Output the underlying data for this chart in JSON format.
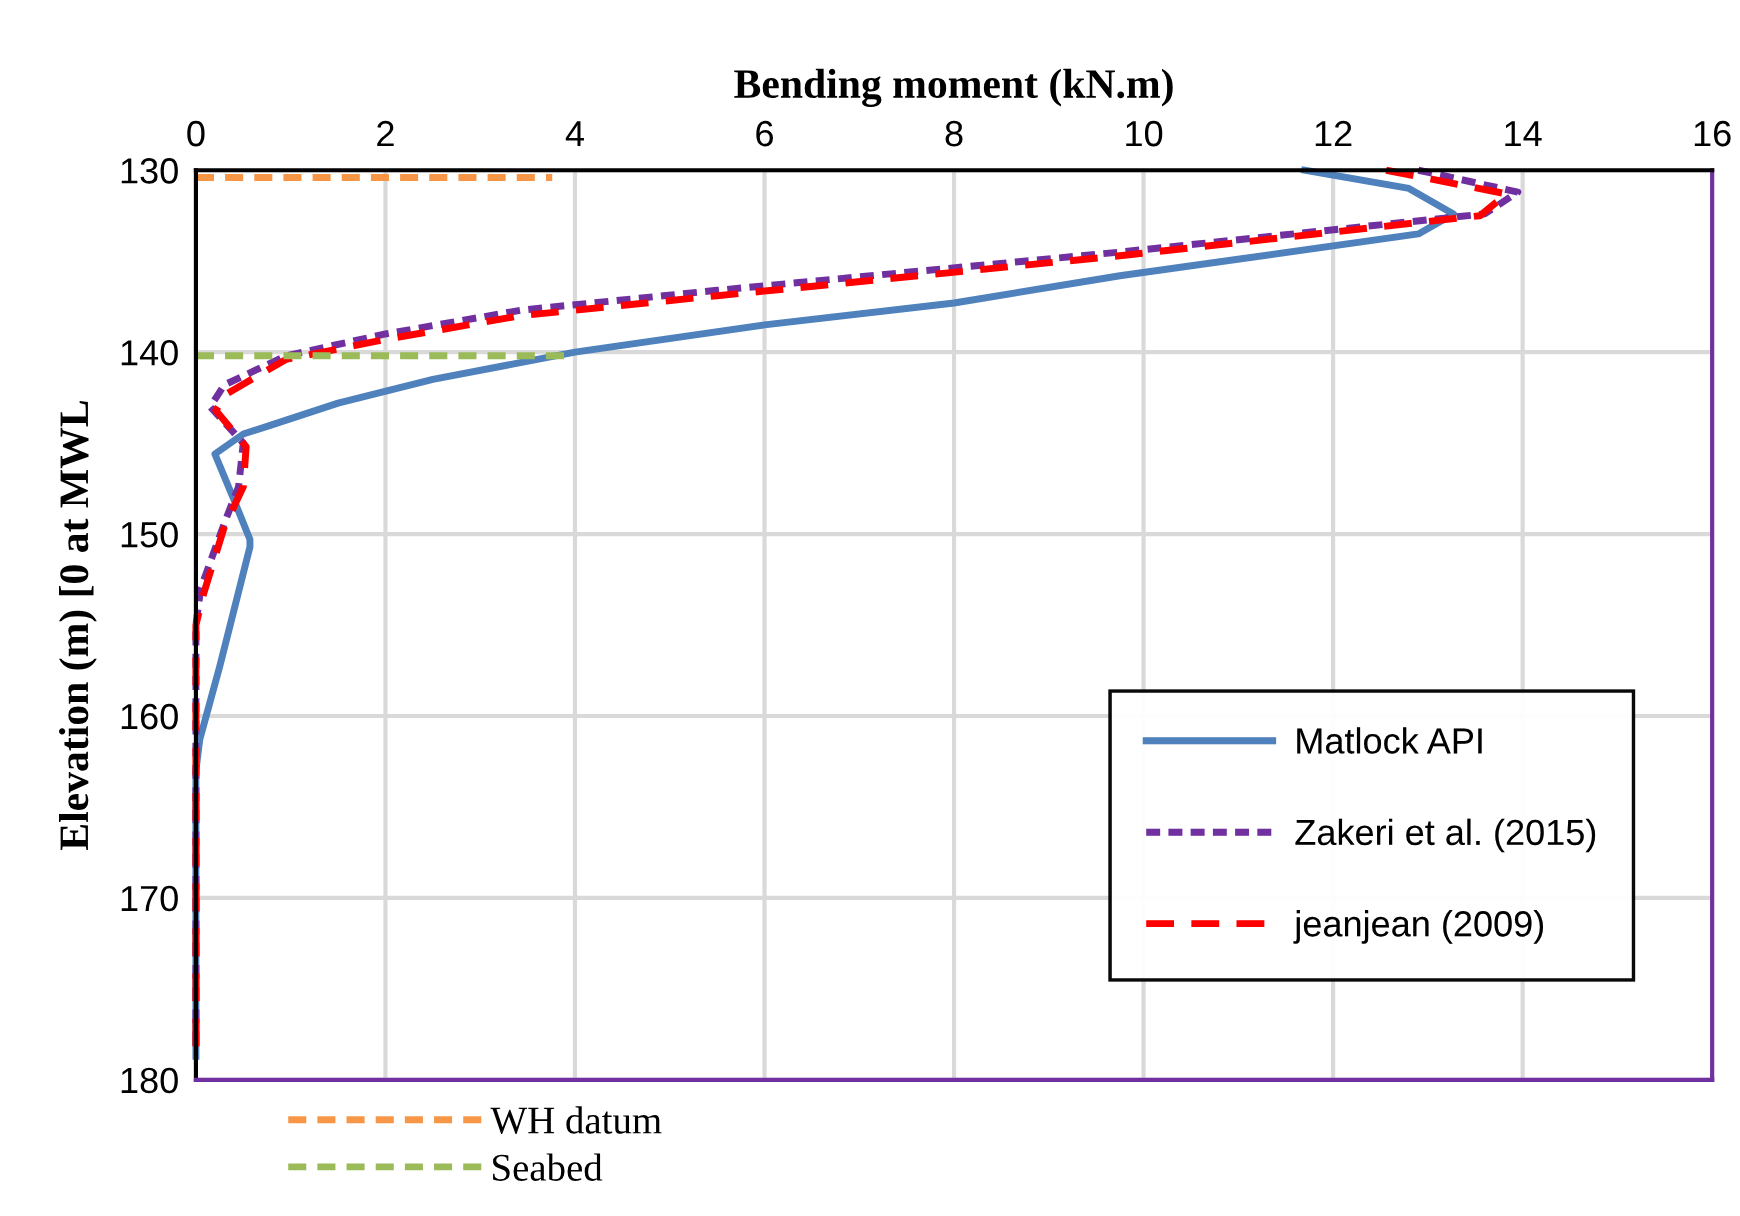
{
  "chart_data": {
    "type": "line",
    "xlabel": "Bending moment (kN.m)",
    "ylabel": "Elevation (m) [0 at MWL",
    "xlim": [
      0,
      16
    ],
    "xticks": [
      0,
      2,
      4,
      6,
      8,
      10,
      12,
      14,
      16
    ],
    "ylim": [
      180,
      130
    ],
    "yticks": [
      130,
      140,
      150,
      160,
      170,
      180
    ],
    "grid": true,
    "legend": "bottom right",
    "marker": "none",
    "series": [
      {
        "name": "Matlock API",
        "color": "#4f81bd",
        "line_style": "solid",
        "x": [
          11.7,
          12.8,
          13.27,
          12.9,
          9.75,
          8,
          6,
          4,
          2.5,
          1.5,
          0.8,
          0.5,
          0.2,
          0.4,
          0.57,
          0.57,
          0.25,
          0.04,
          0,
          0
        ],
        "values": [
          130,
          131,
          132.4,
          133.5,
          135.8,
          137.3,
          138.5,
          140,
          141.5,
          142.8,
          144,
          144.5,
          145.6,
          148.1,
          150.3,
          150.7,
          157.3,
          161.3,
          163,
          178.7
        ]
      },
      {
        "name": "Zakeri et al. (2015)",
        "color": "#7030a0",
        "line_style": "dotted",
        "x": [
          12.9,
          13.95,
          13.6,
          9.75,
          5.5,
          3.42,
          2,
          0.95,
          0.3,
          0.15,
          0.5,
          0.45,
          0.3,
          0.05,
          0,
          0
        ],
        "values": [
          130,
          131.2,
          132.4,
          134.5,
          136.6,
          137.7,
          139,
          140.2,
          141.8,
          143,
          145,
          147.4,
          149.4,
          153,
          155,
          178.5
        ]
      },
      {
        "name": "jeanjean (2009)",
        "color": "#ff0000",
        "line_style": "dashed",
        "x": [
          12.56,
          13.83,
          13.55,
          9.75,
          5.5,
          3.42,
          2,
          0.95,
          0.32,
          0.21,
          0.53,
          0.5,
          0.3,
          0.08,
          0,
          0
        ],
        "values": [
          130,
          131.3,
          132.5,
          134.7,
          136.9,
          138,
          139.3,
          140.4,
          142.3,
          143.2,
          145.2,
          147.4,
          149.6,
          153.3,
          155,
          178.5
        ]
      },
      {
        "name": "WH datum",
        "color": "#f79646",
        "line_style": "dashed",
        "x": [
          0,
          3.76
        ],
        "values": [
          130.4,
          130.4
        ]
      },
      {
        "name": "Seabed",
        "color": "#9bbb59",
        "line_style": "dashed",
        "x": [
          0,
          3.9
        ],
        "values": [
          140.2,
          140.2
        ]
      }
    ]
  }
}
